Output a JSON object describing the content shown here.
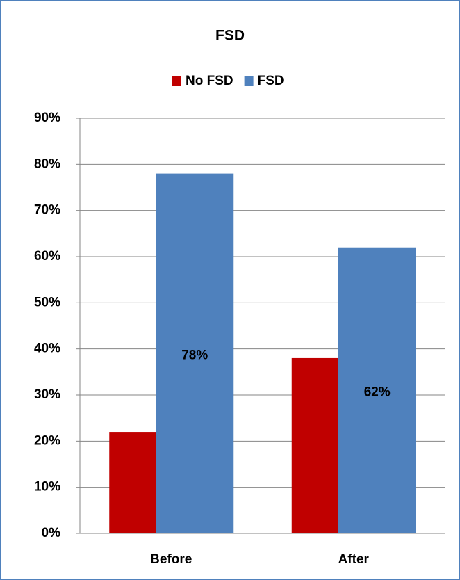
{
  "chart_data": {
    "type": "bar",
    "title": "FSD",
    "categories": [
      "Before",
      "After"
    ],
    "series": [
      {
        "name": "No FSD",
        "color": "#c00000",
        "values": [
          22,
          38
        ]
      },
      {
        "name": "FSD",
        "color": "#4f81bd",
        "values": [
          78,
          62
        ],
        "value_labels": [
          "78%",
          "62%"
        ]
      }
    ],
    "ylim": [
      0,
      90
    ],
    "yticks": [
      {
        "value": 0,
        "label": "0%"
      },
      {
        "value": 10,
        "label": "10%"
      },
      {
        "value": 20,
        "label": "20%"
      },
      {
        "value": 30,
        "label": "30%"
      },
      {
        "value": 40,
        "label": "40%"
      },
      {
        "value": 50,
        "label": "50%"
      },
      {
        "value": 60,
        "label": "60%"
      },
      {
        "value": 70,
        "label": "70%"
      },
      {
        "value": 80,
        "label": "80%"
      },
      {
        "value": 90,
        "label": "90%"
      }
    ],
    "grid": true,
    "legend": "top"
  }
}
